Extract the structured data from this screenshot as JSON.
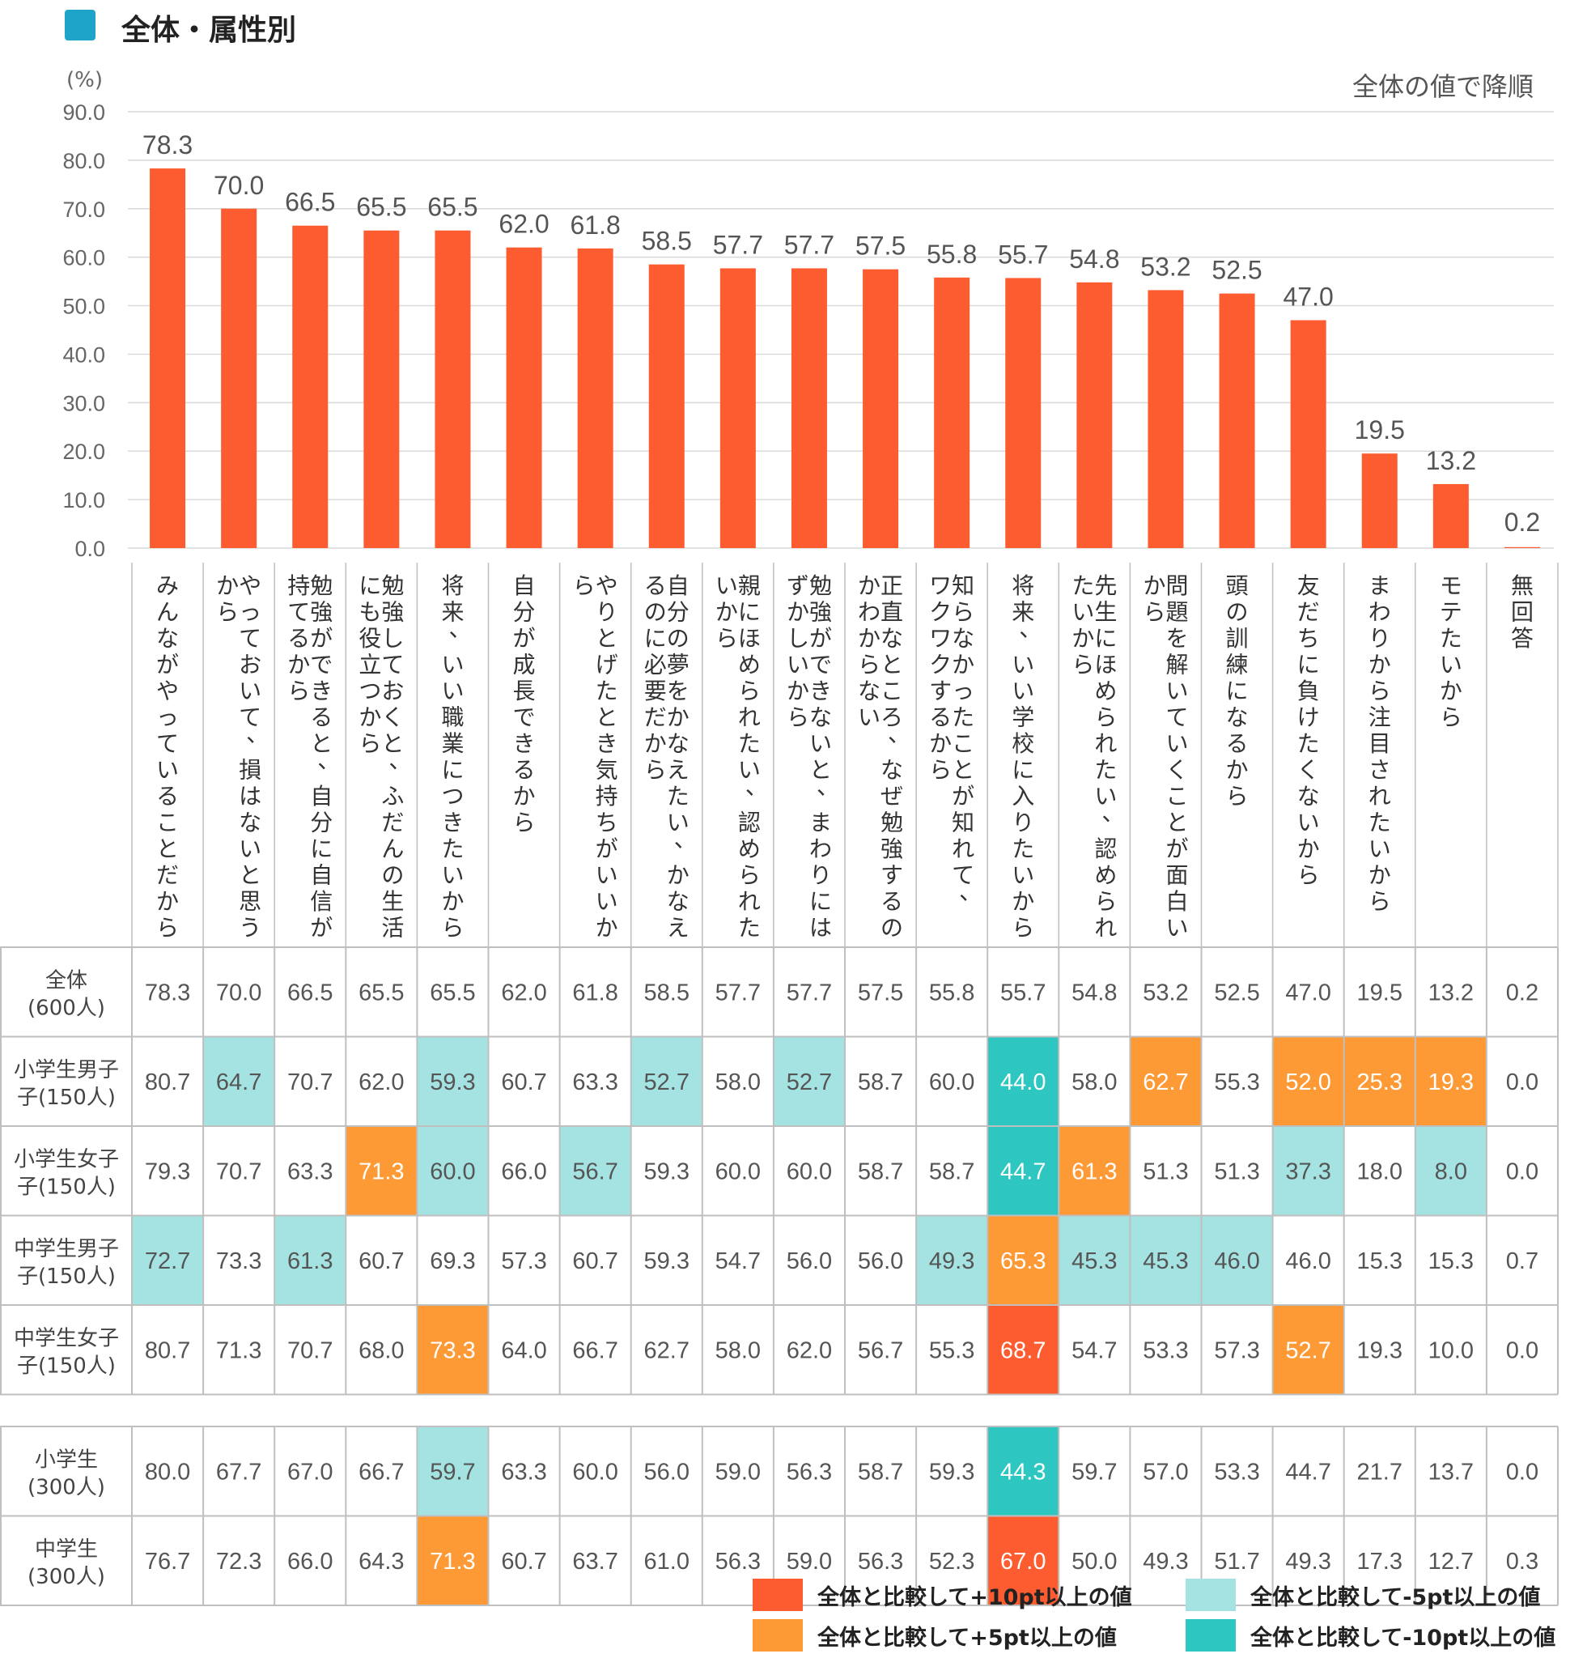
{
  "header": {
    "title": "全体・属性別",
    "unit": "(%)",
    "sort_note": "全体の値で降順"
  },
  "colors": {
    "bar": "#fc5c2f",
    "plus10": "#fc5c2f",
    "plus5": "#fe9a36",
    "minus5": "#a5e3e2",
    "minus10": "#2ec6c0",
    "grid": "#d9d9d9",
    "table_border": "#bfbfbf"
  },
  "chart_data": {
    "type": "bar",
    "ylim": [
      0,
      90
    ],
    "yticks": [
      "0.0",
      "10.0",
      "20.0",
      "30.0",
      "40.0",
      "50.0",
      "60.0",
      "70.0",
      "80.0",
      "90.0"
    ],
    "grid": true,
    "categories": [
      "みんながやっていることだから",
      "やっておいて、損はないと思うから",
      "勉強ができると、自分に自信が持てるから",
      "勉強しておくと、ふだんの生活にも役立つから",
      "将来、いい職業につきたいから",
      "自分が成長できるから",
      "やりとげたとき気持ちがいいから",
      "自分の夢をかなえたい、かなえるのに必要だから",
      "親にほめられたい、認められたいから",
      "勉強ができないと、まわりにはずかしいから",
      "正直なところ、なぜ勉強するのかわからない",
      "知らなかったことが知れて、ワクワクするから",
      "将来、いい学校に入りたいから",
      "先生にほめられたい、認められたいから",
      "問題を解いていくことが面白いから",
      "頭の訓練になるから",
      "友だちに負けたくないから",
      "まわりから注目されたいから",
      "モテたいから",
      "無回答"
    ],
    "label_columns": [
      [
        "みんながやっていることだから"
      ],
      [
        "やっておいて、損はないと思う",
        "から"
      ],
      [
        "勉強ができると、自分に自信が",
        "持てるから"
      ],
      [
        "勉強しておくと、ふだんの生活",
        "にも役立つから"
      ],
      [
        "将来、いい職業につきたいから"
      ],
      [
        "自分が成長できるから"
      ],
      [
        "やりとげたとき気持ちがいいか",
        "ら"
      ],
      [
        "自分の夢をかなえたい、かなえ",
        "るのに必要だから"
      ],
      [
        "親にほめられたい、認められた",
        "いから"
      ],
      [
        "勉強ができないと、まわりには",
        "ずかしいから"
      ],
      [
        "正直なところ、なぜ勉強するの",
        "かわからない"
      ],
      [
        "知らなかったことが知れて、",
        "ワクワクするから"
      ],
      [
        "将来、いい学校に入りたいから"
      ],
      [
        "先生にほめられたい、認められ",
        "たいから"
      ],
      [
        "問題を解いていくことが面白い",
        "から"
      ],
      [
        "頭の訓練になるから"
      ],
      [
        "友だちに負けたくないから"
      ],
      [
        "まわりから注目されたいから"
      ],
      [
        "モテたいから"
      ],
      [
        "無回答"
      ]
    ],
    "values": [
      78.3,
      70.0,
      66.5,
      65.5,
      65.5,
      62.0,
      61.8,
      58.5,
      57.7,
      57.7,
      57.5,
      55.8,
      55.7,
      54.8,
      53.2,
      52.5,
      47.0,
      19.5,
      13.2,
      0.2
    ],
    "value_labels": [
      "78.3",
      "70.0",
      "66.5",
      "65.5",
      "65.5",
      "62.0",
      "61.8",
      "58.5",
      "57.7",
      "57.7",
      "57.5",
      "55.8",
      "55.7",
      "54.8",
      "53.2",
      "52.5",
      "47.0",
      "19.5",
      "13.2",
      "0.2"
    ],
    "table": {
      "rows": [
        {
          "label": [
            "全体",
            "(600人)"
          ],
          "values": [
            "78.3",
            "70.0",
            "66.5",
            "65.5",
            "65.5",
            "62.0",
            "61.8",
            "58.5",
            "57.7",
            "57.7",
            "57.5",
            "55.8",
            "55.7",
            "54.8",
            "53.2",
            "52.5",
            "47.0",
            "19.5",
            "13.2",
            "0.2"
          ],
          "highlights": [
            "",
            "",
            "",
            "",
            "",
            "",
            "",
            "",
            "",
            "",
            "",
            "",
            "",
            "",
            "",
            "",
            "",
            "",
            "",
            ""
          ]
        },
        {
          "label": [
            "小学生男子",
            "子(150人)"
          ],
          "values": [
            "80.7",
            "64.7",
            "70.7",
            "62.0",
            "59.3",
            "60.7",
            "63.3",
            "52.7",
            "58.0",
            "52.7",
            "58.7",
            "60.0",
            "44.0",
            "58.0",
            "62.7",
            "55.3",
            "52.0",
            "25.3",
            "19.3",
            "0.0"
          ],
          "highlights": [
            "",
            "minus5",
            "",
            "",
            "minus5",
            "",
            "",
            "minus5",
            "",
            "minus5",
            "",
            "",
            "minus10",
            "",
            "plus5",
            "",
            "plus5",
            "plus5",
            "plus5",
            ""
          ]
        },
        {
          "label": [
            "小学生女子",
            "子(150人)"
          ],
          "values": [
            "79.3",
            "70.7",
            "63.3",
            "71.3",
            "60.0",
            "66.0",
            "56.7",
            "59.3",
            "60.0",
            "60.0",
            "58.7",
            "58.7",
            "44.7",
            "61.3",
            "51.3",
            "51.3",
            "37.3",
            "18.0",
            "8.0",
            "0.0"
          ],
          "highlights": [
            "",
            "",
            "",
            "plus5",
            "minus5",
            "",
            "minus5",
            "",
            "",
            "",
            "",
            "",
            "minus10",
            "plus5",
            "",
            "",
            "minus5",
            "",
            "minus5",
            ""
          ]
        },
        {
          "label": [
            "中学生男子",
            "子(150人)"
          ],
          "values": [
            "72.7",
            "73.3",
            "61.3",
            "60.7",
            "69.3",
            "57.3",
            "60.7",
            "59.3",
            "54.7",
            "56.0",
            "56.0",
            "49.3",
            "65.3",
            "45.3",
            "45.3",
            "46.0",
            "46.0",
            "15.3",
            "15.3",
            "0.7"
          ],
          "highlights": [
            "minus5",
            "",
            "minus5",
            "",
            "",
            "",
            "",
            "",
            "",
            "",
            "",
            "minus5",
            "plus5",
            "minus5",
            "minus5",
            "minus5",
            "",
            "",
            "",
            ""
          ]
        },
        {
          "label": [
            "中学生女子",
            "子(150人)"
          ],
          "values": [
            "80.7",
            "71.3",
            "70.7",
            "68.0",
            "73.3",
            "64.0",
            "66.7",
            "62.7",
            "58.0",
            "62.0",
            "56.7",
            "55.3",
            "68.7",
            "54.7",
            "53.3",
            "57.3",
            "52.7",
            "19.3",
            "10.0",
            "0.0"
          ],
          "highlights": [
            "",
            "",
            "",
            "",
            "plus5",
            "",
            "",
            "",
            "",
            "",
            "",
            "",
            "plus10",
            "",
            "",
            "",
            "plus5",
            "",
            "",
            ""
          ]
        }
      ],
      "rows2": [
        {
          "label": [
            "小学生",
            "(300人)"
          ],
          "values": [
            "80.0",
            "67.7",
            "67.0",
            "66.7",
            "59.7",
            "63.3",
            "60.0",
            "56.0",
            "59.0",
            "56.3",
            "58.7",
            "59.3",
            "44.3",
            "59.7",
            "57.0",
            "53.3",
            "44.7",
            "21.7",
            "13.7",
            "0.0"
          ],
          "highlights": [
            "",
            "",
            "",
            "",
            "minus5",
            "",
            "",
            "",
            "",
            "",
            "",
            "",
            "minus10",
            "",
            "",
            "",
            "",
            "",
            "",
            ""
          ]
        },
        {
          "label": [
            "中学生",
            "(300人)"
          ],
          "values": [
            "76.7",
            "72.3",
            "66.0",
            "64.3",
            "71.3",
            "60.7",
            "63.7",
            "61.0",
            "56.3",
            "59.0",
            "56.3",
            "52.3",
            "67.0",
            "50.0",
            "49.3",
            "51.7",
            "49.3",
            "17.3",
            "12.7",
            "0.3"
          ],
          "highlights": [
            "",
            "",
            "",
            "",
            "plus5",
            "",
            "",
            "",
            "",
            "",
            "",
            "",
            "plus10",
            "",
            "",
            "",
            "",
            "",
            "",
            ""
          ]
        }
      ]
    }
  },
  "legend": {
    "plus10": "全体と比較して+10pt以上の値",
    "plus5": "全体と比較して+5pt以上の値",
    "minus5": "全体と比較して-5pt以上の値",
    "minus10": "全体と比較して-10pt以上の値"
  }
}
